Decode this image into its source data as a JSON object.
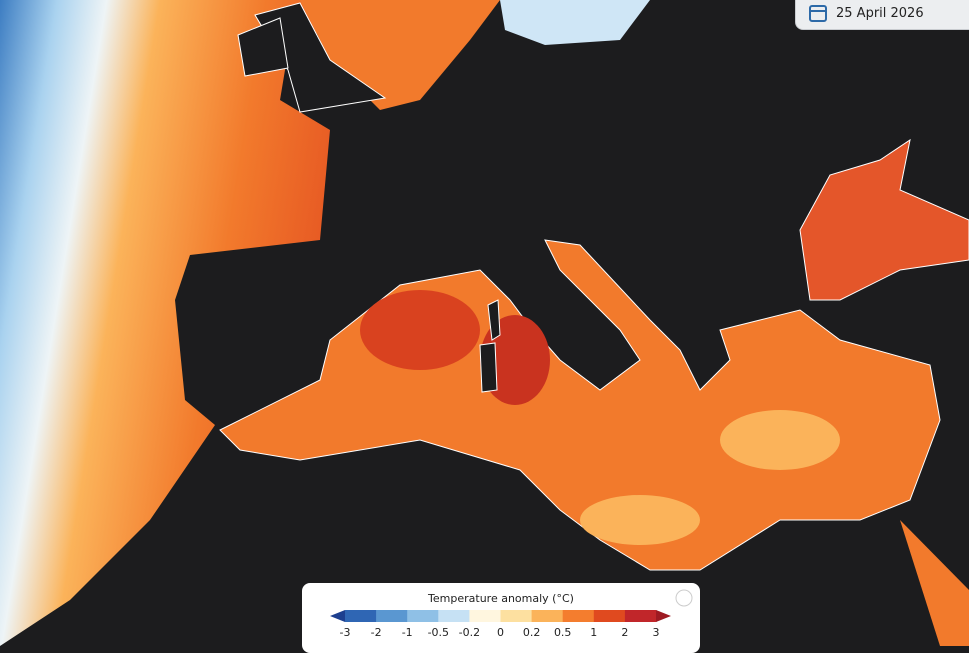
{
  "date_label": "25 April 2026",
  "legend": {
    "title": "Temperature anomaly (°C)",
    "ticks": [
      "-3",
      "-2",
      "-1",
      "-0.5",
      "-0.2",
      "0",
      "0.2",
      "0.5",
      "1",
      "2",
      "3"
    ],
    "colors": [
      "#1d3f8f",
      "#2f66b4",
      "#5a97d1",
      "#8fc0e6",
      "#c6e1f4",
      "#fff6df",
      "#fde0a0",
      "#fbb35a",
      "#f47d2e",
      "#e04a1f",
      "#c1262a",
      "#9e1a22"
    ]
  }
}
